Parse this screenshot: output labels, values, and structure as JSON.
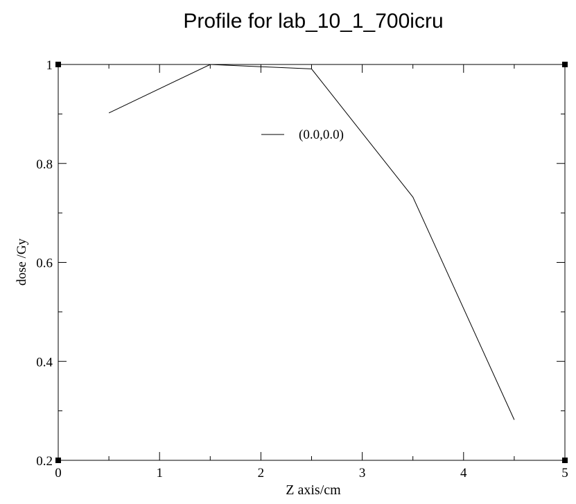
{
  "chart_data": {
    "type": "line",
    "title": "Profile for lab_10_1_700icru",
    "xlabel": "Z axis/cm",
    "ylabel": "dose /Gy",
    "xlim": [
      0,
      5
    ],
    "ylim": [
      0.2,
      1.0
    ],
    "xticks": [
      0,
      1,
      2,
      3,
      4,
      5
    ],
    "xtick_labels": [
      "0",
      "1",
      "2",
      "3",
      "4",
      "5"
    ],
    "yticks": [
      0.2,
      0.4,
      0.6,
      0.8,
      1.0
    ],
    "ytick_labels": [
      "0.2",
      "0.4",
      "0.6",
      "0.8",
      "1"
    ],
    "grid": false,
    "legend_position": "top-center",
    "series": [
      {
        "name": "(0.0,0.0)",
        "color": "#000000",
        "x": [
          0.5,
          1.5,
          2.5,
          3.5,
          4.5
        ],
        "y": [
          0.902,
          1.0,
          0.991,
          0.732,
          0.282
        ]
      }
    ]
  }
}
